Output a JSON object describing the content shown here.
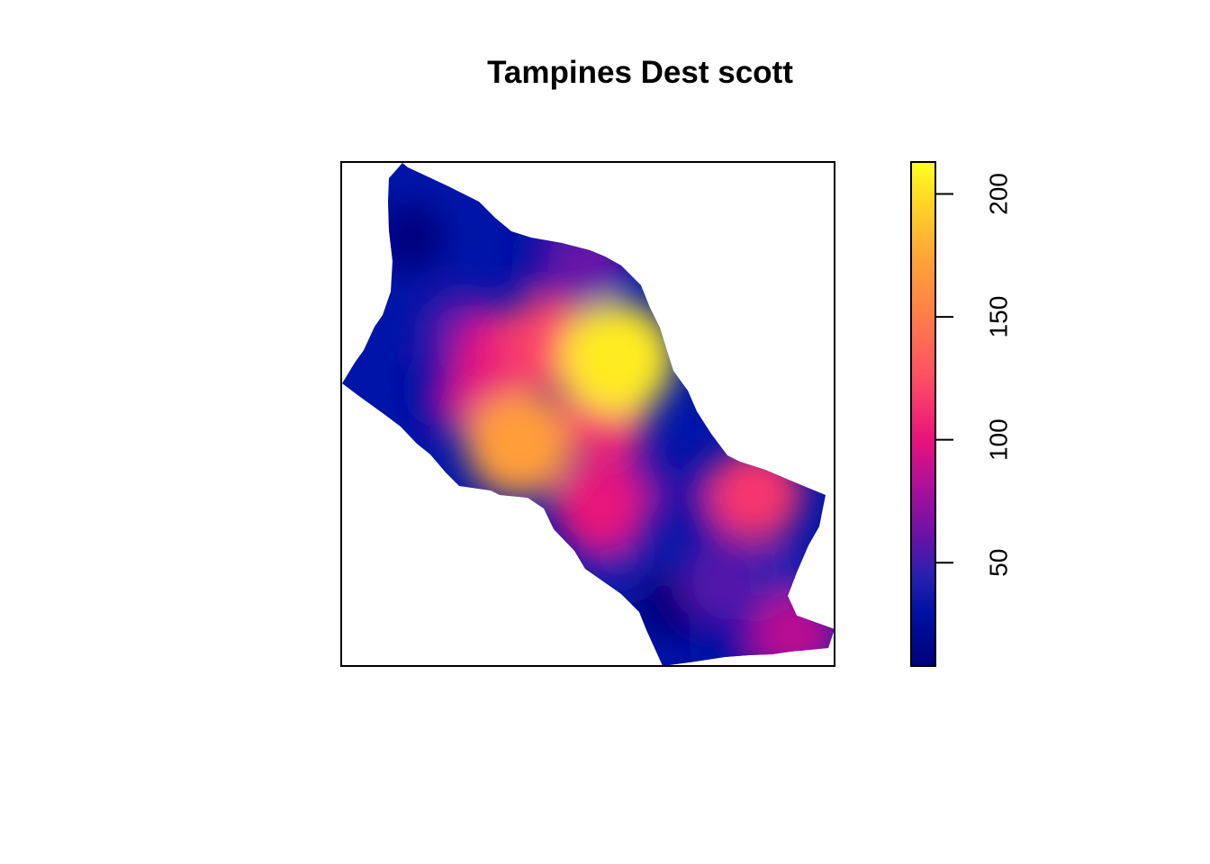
{
  "chart_data": {
    "type": "heatmap",
    "title": "Tampines Dest scott",
    "xlabel": "",
    "ylabel": "",
    "axes_drawn": false,
    "grid": false,
    "legend": {
      "kind": "colorbar",
      "placement": "right",
      "range": [
        8,
        213
      ],
      "ticks": [
        50,
        100,
        150,
        200
      ],
      "tick_labels": [
        "50",
        "100",
        "150",
        "200"
      ],
      "label_orientation": "vertical"
    },
    "color_scale": {
      "name": "plasma",
      "stops": [
        {
          "value": 8,
          "color": "#00007a"
        },
        {
          "value": 30,
          "color": "#0011a4"
        },
        {
          "value": 45,
          "color": "#2a20b0"
        },
        {
          "value": 60,
          "color": "#6612a8"
        },
        {
          "value": 80,
          "color": "#a8109a"
        },
        {
          "value": 100,
          "color": "#e8127c"
        },
        {
          "value": 125,
          "color": "#ff4e64"
        },
        {
          "value": 150,
          "color": "#ff7d48"
        },
        {
          "value": 175,
          "color": "#ffa638"
        },
        {
          "value": 195,
          "color": "#ffd228"
        },
        {
          "value": 213,
          "color": "#ffff1e"
        }
      ]
    },
    "density_peaks": [
      {
        "x": 0.14,
        "y": 0.85,
        "value": 10
      },
      {
        "x": 0.2,
        "y": 0.55,
        "value": 30
      },
      {
        "x": 0.42,
        "y": 0.81,
        "value": 30
      },
      {
        "x": 0.25,
        "y": 0.66,
        "value": 60
      },
      {
        "x": 0.33,
        "y": 0.61,
        "value": 100
      },
      {
        "x": 0.5,
        "y": 0.8,
        "value": 60
      },
      {
        "x": 0.56,
        "y": 0.61,
        "value": 205
      },
      {
        "x": 0.42,
        "y": 0.64,
        "value": 120
      },
      {
        "x": 0.53,
        "y": 0.5,
        "value": 110
      },
      {
        "x": 0.58,
        "y": 0.35,
        "value": 60
      },
      {
        "x": 0.36,
        "y": 0.44,
        "value": 170
      },
      {
        "x": 0.3,
        "y": 0.52,
        "value": 95
      },
      {
        "x": 0.52,
        "y": 0.32,
        "value": 100
      },
      {
        "x": 0.56,
        "y": 0.22,
        "value": 40
      },
      {
        "x": 0.66,
        "y": 0.12,
        "value": 10
      },
      {
        "x": 0.74,
        "y": 0.32,
        "value": 30
      },
      {
        "x": 0.84,
        "y": 0.34,
        "value": 115
      },
      {
        "x": 0.77,
        "y": 0.17,
        "value": 55
      },
      {
        "x": 0.92,
        "y": 0.06,
        "value": 85
      },
      {
        "x": 0.78,
        "y": 0.04,
        "value": 30
      },
      {
        "x": 0.87,
        "y": 0.16,
        "value": 45
      }
    ]
  }
}
